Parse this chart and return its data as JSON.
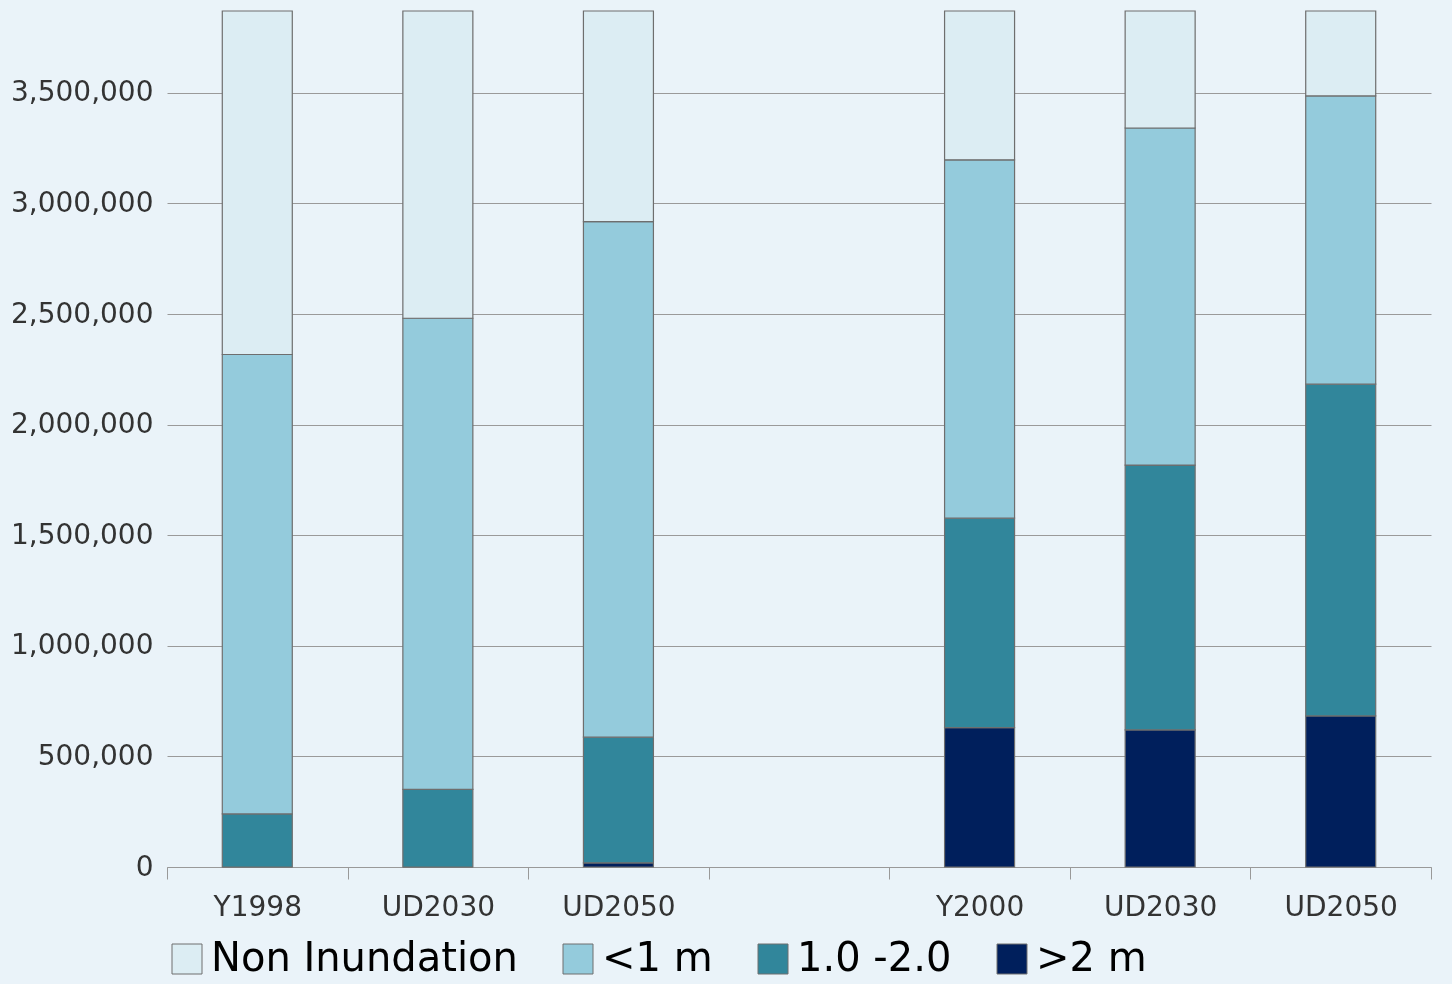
{
  "chart_data": {
    "type": "bar",
    "stacked": true,
    "categories": [
      "Y1998",
      "UD2030",
      "UD2050",
      null,
      "Y2000",
      "UD2030",
      "UD2050"
    ],
    "series": [
      {
        "name": ">2 m",
        "color": "#001f5c",
        "values": [
          0,
          0,
          19000,
          null,
          630000,
          620000,
          683000
        ]
      },
      {
        "name": "1.0 -2.0",
        "color": "#31869b",
        "values": [
          240000,
          351000,
          568000,
          null,
          947000,
          1197000,
          1500000
        ]
      },
      {
        "name": "<1 m",
        "color": "#94cbdc",
        "values": [
          2077000,
          2130000,
          2331000,
          null,
          1620000,
          1524000,
          1303000
        ]
      },
      {
        "name": "Non Inundation",
        "color": "#dcedf3",
        "values": [
          1553000,
          1389000,
          952000,
          null,
          673000,
          529000,
          384000
        ]
      }
    ],
    "ylim": [
      0,
      3870000
    ],
    "yticks": [
      0,
      {
        "value": 500000,
        "label": "500,000"
      },
      {
        "value": 1000000,
        "label": "1,000,000"
      },
      {
        "value": 1500000,
        "label": "1,500,000"
      },
      {
        "value": 2000000,
        "label": "2,000,000"
      },
      {
        "value": 2500000,
        "label": "2,500,000"
      },
      {
        "value": 3000000,
        "label": "3,000,000"
      },
      {
        "value": 3500000,
        "label": "3,500,000"
      }
    ],
    "grid": "y",
    "legend": "bottom"
  }
}
